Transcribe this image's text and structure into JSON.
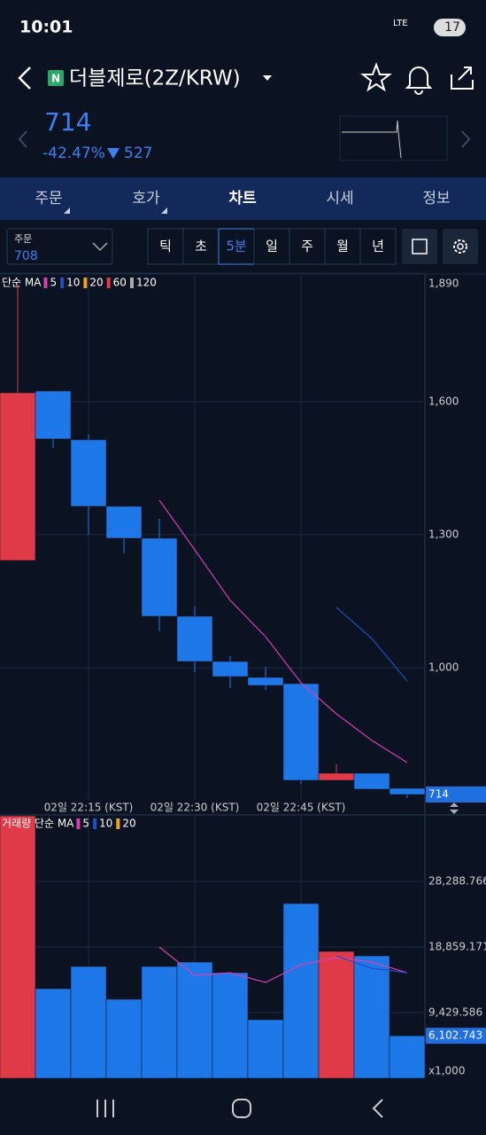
{
  "status": {
    "time": "10:01",
    "network": "LTE",
    "battery": "17"
  },
  "header": {
    "title": "더블제로(2Z/KRW)",
    "badge": "N",
    "price": 714,
    "change_pct": "-42.47%",
    "change": 527
  },
  "tabs": [
    "주문",
    "호가",
    "차트",
    "시세",
    "정보"
  ],
  "toolbar": {
    "order_label": "주문",
    "order_value": 708,
    "periods": [
      "틱",
      "초",
      "5분",
      "일",
      "주",
      "월",
      "년"
    ],
    "selected_period": 2
  },
  "chart_data": [
    {
      "type": "candlestick",
      "legend_title": "단순 MA",
      "categories": [
        null,
        null,
        "02일 22:15 (KST)",
        null,
        null,
        "02일 22:30 (KST)",
        null,
        null,
        "02일 22:45 (KST)",
        null,
        null,
        null
      ],
      "open": [
        1242,
        1624,
        1514,
        1364,
        1292,
        1116,
        1014,
        978,
        964,
        746,
        762,
        728
      ],
      "high": [
        1866,
        1624,
        1526,
        1364,
        1336,
        1138,
        1026,
        1002,
        964,
        782,
        762,
        728
      ],
      "low": [
        1242,
        1496,
        1300,
        1258,
        1082,
        990,
        954,
        950,
        738,
        746,
        726,
        706
      ],
      "close": [
        1620,
        1516,
        1364,
        1292,
        1116,
        1014,
        980,
        960,
        746,
        762,
        726,
        714
      ],
      "up_color": "#e03a48",
      "down_color": "#1f78e8",
      "ma": [
        {
          "name": "5",
          "color": "#d63fb0",
          "values": [
            null,
            null,
            null,
            null,
            1378,
            1266,
            1152,
            1070,
            966,
            896,
            836,
            786
          ]
        },
        {
          "name": "10",
          "color": "#1f4fc8",
          "values": [
            null,
            null,
            null,
            null,
            null,
            null,
            null,
            null,
            null,
            1136,
            1066,
            970
          ]
        },
        {
          "name": "20",
          "color": "#f0a020",
          "values": [
            null,
            null,
            null,
            null,
            null,
            null,
            null,
            null,
            null,
            null,
            null,
            null
          ]
        },
        {
          "name": "60",
          "color": "#e03a48",
          "values": [
            null,
            null,
            null,
            null,
            null,
            null,
            null,
            null,
            null,
            null,
            null,
            null
          ]
        },
        {
          "name": "120",
          "color": "#aaaaaa",
          "values": [
            null,
            null,
            null,
            null,
            null,
            null,
            null,
            null,
            null,
            null,
            null,
            null
          ]
        }
      ],
      "ylim": [
        700,
        1886
      ],
      "yticks": [
        {
          "value": 1000,
          "label": "1,000"
        },
        {
          "value": 1300,
          "label": "1,300"
        },
        {
          "value": 1600,
          "label": "1,600"
        },
        {
          "value": 1890,
          "label": "1,890"
        }
      ],
      "current_value": 714,
      "grid": true
    },
    {
      "type": "bar",
      "legend_title": "거래량 단순 MA",
      "values": [
        37700,
        12870,
        16056,
        11341,
        16056,
        16693,
        15164,
        8410,
        25103,
        18222,
        17585,
        6102.743
      ],
      "colors": [
        "#e03a48",
        "#1f78e8",
        "#1f78e8",
        "#1f78e8",
        "#1f78e8",
        "#1f78e8",
        "#1f78e8",
        "#1f78e8",
        "#1f78e8",
        "#e03a48",
        "#1f78e8",
        "#1f78e8"
      ],
      "ma": [
        {
          "name": "5",
          "color": "#d63fb0",
          "values": [
            null,
            null,
            null,
            null,
            18859,
            14781,
            15164,
            13762,
            16310,
            17330,
            16693,
            15164
          ]
        },
        {
          "name": "10",
          "color": "#1f4fc8",
          "values": [
            null,
            null,
            null,
            null,
            null,
            null,
            null,
            null,
            null,
            17585,
            15800,
            15164
          ]
        },
        {
          "name": "20",
          "color": "#f0a020",
          "values": [
            null,
            null,
            null,
            null,
            null,
            null,
            null,
            null,
            null,
            null,
            null,
            null
          ]
        }
      ],
      "ylim": [
        0,
        37718
      ],
      "yticks": [
        {
          "value": 9429.586,
          "label": "9,429.586"
        },
        {
          "value": 18859.171,
          "label": "18,859.171"
        },
        {
          "value": 28288.766,
          "label": "28,288.766"
        }
      ],
      "unit": "x1,000",
      "current_value": 6102.743,
      "current_label": "6,102.743",
      "grid": true
    }
  ]
}
